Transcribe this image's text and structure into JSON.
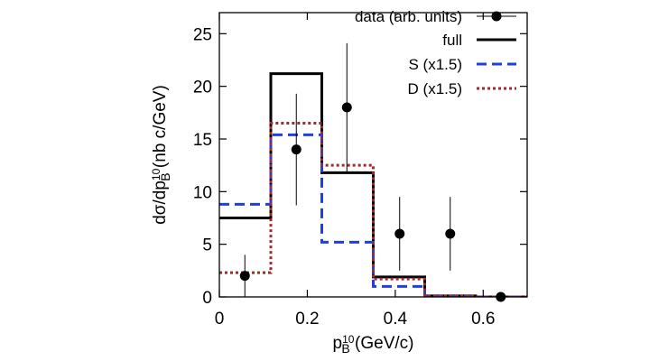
{
  "chart_data": {
    "type": "line",
    "title": "",
    "xlabel": {
      "main": "p",
      "sup": "10",
      "sub": "B",
      "rest": " (GeV/c)"
    },
    "ylabel": {
      "main": "dσ/dp",
      "sup": "10",
      "sub": "B",
      "rest": " (nb c/GeV)"
    },
    "xlim": [
      0,
      0.7
    ],
    "ylim": [
      0,
      27
    ],
    "x_ticks": [
      0,
      0.2,
      0.4,
      0.6
    ],
    "x_tick_labels": [
      "0",
      "0.2",
      "0.4",
      "0.6"
    ],
    "y_ticks": [
      0,
      5,
      10,
      15,
      20,
      25
    ],
    "y_tick_labels": [
      "0",
      "5",
      "10",
      "15",
      "20",
      "25"
    ],
    "grid": false,
    "legend_position": "top-right",
    "bin_edges": [
      0,
      0.117,
      0.233,
      0.35,
      0.467,
      0.583,
      0.7
    ],
    "series": [
      {
        "name": "full",
        "style": "solid",
        "color": "#000000",
        "values": [
          7.5,
          21.2,
          11.8,
          1.9,
          0.1,
          0.0
        ]
      },
      {
        "name": "S (x1.5)",
        "style": "dashed",
        "color": "#1f3fe0",
        "values": [
          8.8,
          15.4,
          5.2,
          1.0,
          0.05,
          0.0
        ]
      },
      {
        "name": "D (x1.5)",
        "style": "dotted",
        "color": "#a32a2a",
        "values": [
          2.3,
          16.5,
          12.5,
          1.7,
          0.1,
          0.0
        ]
      }
    ],
    "data_points": {
      "name": "data (arb. units)",
      "color": "#000000",
      "points": [
        {
          "x": 0.058,
          "y": 2.0,
          "lo": 0.0,
          "hi": 4.0
        },
        {
          "x": 0.175,
          "y": 14.0,
          "lo": 8.7,
          "hi": 19.3
        },
        {
          "x": 0.29,
          "y": 18.0,
          "lo": 11.9,
          "hi": 24.1
        },
        {
          "x": 0.41,
          "y": 6.0,
          "lo": 2.5,
          "hi": 9.5
        },
        {
          "x": 0.525,
          "y": 6.0,
          "lo": 2.5,
          "hi": 9.5
        },
        {
          "x": 0.64,
          "y": 0.0,
          "lo": 0.0,
          "hi": 0.0
        }
      ]
    }
  }
}
